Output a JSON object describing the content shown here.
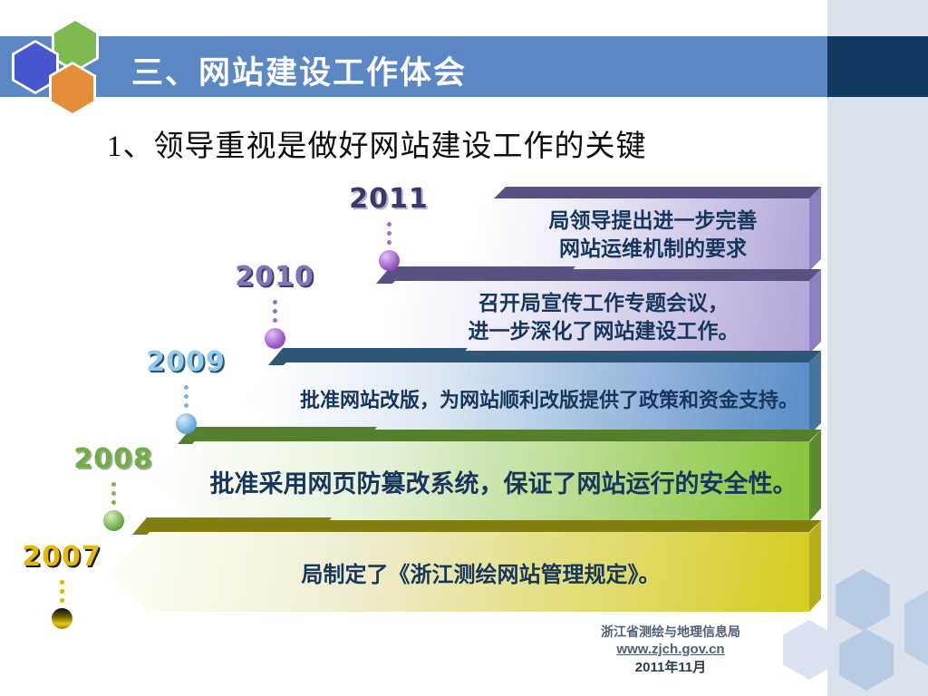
{
  "slide_title": "三、网站建设工作体会",
  "slide_subtitle": "1、领导重视是做好网站建设工作的关键",
  "timeline": {
    "rows": [
      {
        "year": "2011",
        "line1": "局领导提出进一步完善",
        "line2": "网站运维机制的要求",
        "accent": "#b2a6d9"
      },
      {
        "year": "2010",
        "line1": "召开局宣传工作专题会议，",
        "line2": "进一步深化了网站建设工作。",
        "accent": "#b2a6d9"
      },
      {
        "year": "2009",
        "line1": "批准网站改版，为网站顺利改版提供了政策和资金支持。",
        "accent": "#5c90ca"
      },
      {
        "year": "2008",
        "line1": "批准采用网页防篡改系统，保证了网站运行的安全性。",
        "accent": "#8bc53f"
      },
      {
        "year": "2007",
        "line1": "局制定了《浙江测绘网站管理规定》。",
        "accent": "#d5cf27"
      }
    ]
  },
  "footer": {
    "org": "浙江省测绘与地理信息局",
    "url": "www.zjch.gov.cn",
    "date": "2011年11月"
  },
  "colors": {
    "header_bar": "#5b87c4",
    "header_block": "#123a61",
    "side_band": "#dce2eb",
    "hex_blue": "#4656cc",
    "hex_green": "#7cb94e",
    "hex_orange": "#e58e3a",
    "banner_text": "#17365d"
  }
}
